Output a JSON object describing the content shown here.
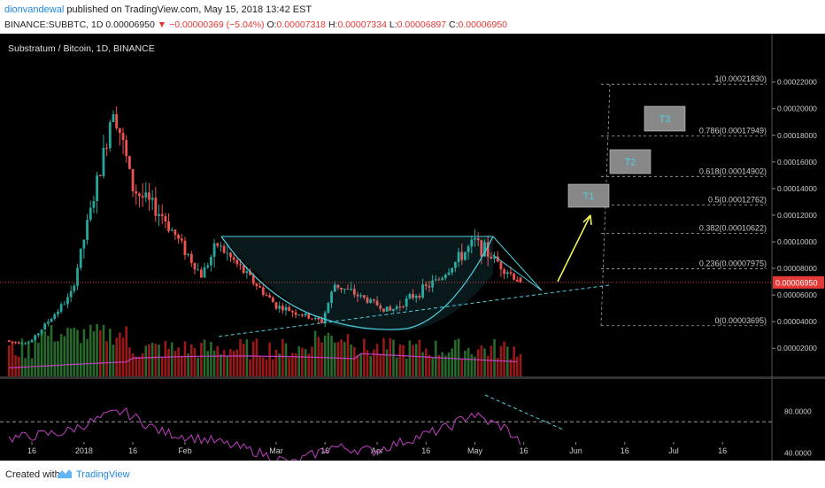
{
  "header": {
    "author": "dionvandewal",
    "published_text": "published on TradingView.com, May 15, 2018 13:42 EST",
    "symbol": "BINANCE:SUBBTC, 1D",
    "last": "0.00006950",
    "change": "−0.00000369 (−5.04%)",
    "o_label": "O:",
    "o_value": "0.00007318",
    "h_label": "H:",
    "h_value": "0.00007334",
    "l_label": "L:",
    "l_value": "0.00006897",
    "c_label": "C:",
    "c_value": "0.00006950"
  },
  "chart": {
    "legend": "Substratum / Bitcoin, 1D, BINANCE",
    "price_badge": "0.00006950",
    "price_axis_ticks": [
      "0.00022000",
      "0.00020000",
      "0.00018000",
      "0.00016000",
      "0.00014000",
      "0.00012000",
      "0.00010000",
      "0.00008000",
      "0.00006000",
      "0.00004000",
      "0.00002000"
    ],
    "rsi_axis_ticks": [
      "80.0000",
      "40.0000"
    ],
    "time_axis_ticks": [
      "16",
      "2018",
      "16",
      "Feb",
      "Mar",
      "16",
      "Apr",
      "16",
      "May",
      "16",
      "Jun",
      "16",
      "Jul",
      "16"
    ],
    "fib_levels": [
      {
        "label": "1(0.00021830)",
        "value": 0.0002183
      },
      {
        "label": "0.786(0.00017949)",
        "value": 0.00017949
      },
      {
        "label": "0.618(0.00014902)",
        "value": 0.00014902
      },
      {
        "label": "0.5(0.00012762)",
        "value": 0.00012762
      },
      {
        "label": "0.382(0.00010622)",
        "value": 0.00010622
      },
      {
        "label": "0.236(0.00007975)",
        "value": 7.975e-05
      },
      {
        "label": "0(0.00003695)",
        "value": 3.695e-05
      }
    ],
    "targets": [
      "T1",
      "T2",
      "T3"
    ],
    "colors": {
      "bg": "#000000",
      "up": "#26a69a",
      "down": "#ef5350",
      "vol_up": "#2e7d32",
      "vol_down": "#b71c1c",
      "ma": "#c040c0",
      "rsi": "#c040c0",
      "cup": "#4dd0e1",
      "arrow": "#ffff55",
      "target_fill": "#888888",
      "target_text": "#4dd0e1"
    }
  },
  "chart_data": {
    "type": "candlestick",
    "title": "Substratum / Bitcoin, 1D, BINANCE",
    "close_path": [
      {
        "x": "2017-12-16",
        "close": 2.6e-05
      },
      {
        "x": "2017-12-28",
        "close": 6e-05
      },
      {
        "x": "2018-01-07",
        "close": 0.000165
      },
      {
        "x": "2018-01-10",
        "close": 0.000205
      },
      {
        "x": "2018-01-16",
        "close": 0.00014
      },
      {
        "x": "2018-01-25",
        "close": 0.00012
      },
      {
        "x": "2018-02-06",
        "close": 7.5e-05
      },
      {
        "x": "2018-02-11",
        "close": 9.8e-05
      },
      {
        "x": "2018-03-01",
        "close": 5.2e-05
      },
      {
        "x": "2018-03-15",
        "close": 4e-05
      },
      {
        "x": "2018-03-19",
        "close": 6.8e-05
      },
      {
        "x": "2018-04-05",
        "close": 4.8e-05
      },
      {
        "x": "2018-04-20",
        "close": 7.2e-05
      },
      {
        "x": "2018-05-01",
        "close": 0.0001
      },
      {
        "x": "2018-05-15",
        "close": 6.95e-05
      }
    ],
    "ylim": [
      0,
      0.000235
    ],
    "rsi_range": [
      20,
      90
    ]
  }
}
